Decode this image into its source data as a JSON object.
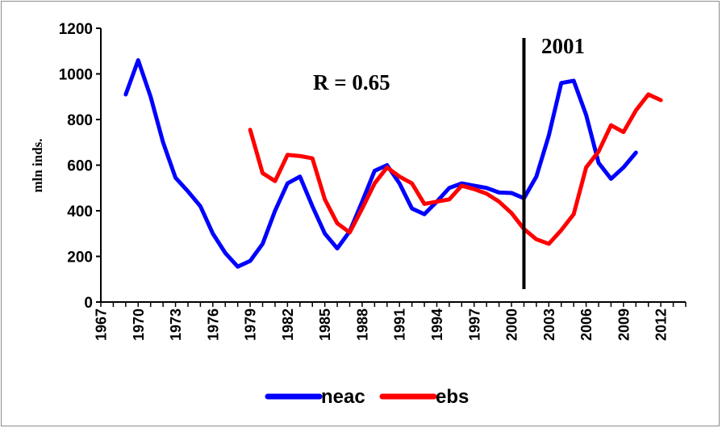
{
  "chart_data": {
    "type": "line",
    "title": "",
    "xlabel": "",
    "ylabel": "mln inds.",
    "ylim": [
      0,
      1200
    ],
    "yticks": [
      0,
      200,
      400,
      600,
      800,
      1000,
      1200
    ],
    "xlim": [
      1967,
      2014
    ],
    "xticks": [
      "1967",
      "1970",
      "1973",
      "1976",
      "1979",
      "1982",
      "1985",
      "1988",
      "1991",
      "1994",
      "1997",
      "2000",
      "2003",
      "2006",
      "2009",
      "2012"
    ],
    "grid": false,
    "legend_position": "bottom",
    "series": [
      {
        "name": "neac",
        "color": "#0000FF",
        "x": [
          1969,
          1970,
          1971,
          1972,
          1973,
          1974,
          1975,
          1976,
          1977,
          1978,
          1979,
          1980,
          1981,
          1982,
          1983,
          1984,
          1985,
          1986,
          1987,
          1988,
          1989,
          1990,
          1991,
          1992,
          1993,
          1994,
          1995,
          1996,
          1997,
          1998,
          1999,
          2000,
          2001,
          2002,
          2003,
          2004,
          2005,
          2006,
          2007,
          2008,
          2009,
          2010
        ],
        "y": [
          910,
          1060,
          900,
          700,
          545,
          485,
          420,
          300,
          215,
          155,
          180,
          255,
          400,
          520,
          550,
          420,
          300,
          235,
          310,
          440,
          575,
          600,
          520,
          410,
          385,
          440,
          500,
          520,
          510,
          500,
          480,
          478,
          455,
          550,
          730,
          960,
          970,
          820,
          610,
          540,
          590,
          655
        ]
      },
      {
        "name": "ebs",
        "color": "#FF0000",
        "x": [
          1979,
          1980,
          1981,
          1982,
          1983,
          1984,
          1985,
          1986,
          1987,
          1988,
          1989,
          1990,
          1991,
          1992,
          1993,
          1994,
          1995,
          1996,
          1997,
          1998,
          1999,
          2000,
          2001,
          2002,
          2003,
          2004,
          2005,
          2006,
          2007,
          2008,
          2009,
          2010,
          2011,
          2012
        ],
        "y": [
          755,
          565,
          530,
          645,
          640,
          630,
          450,
          345,
          305,
          410,
          520,
          590,
          550,
          520,
          430,
          440,
          450,
          510,
          495,
          475,
          440,
          390,
          320,
          275,
          255,
          315,
          385,
          590,
          660,
          775,
          745,
          840,
          910,
          885
        ]
      }
    ],
    "annotations": [
      {
        "text": "R = 0.65"
      },
      {
        "text": "2001",
        "x": 2001
      }
    ]
  }
}
